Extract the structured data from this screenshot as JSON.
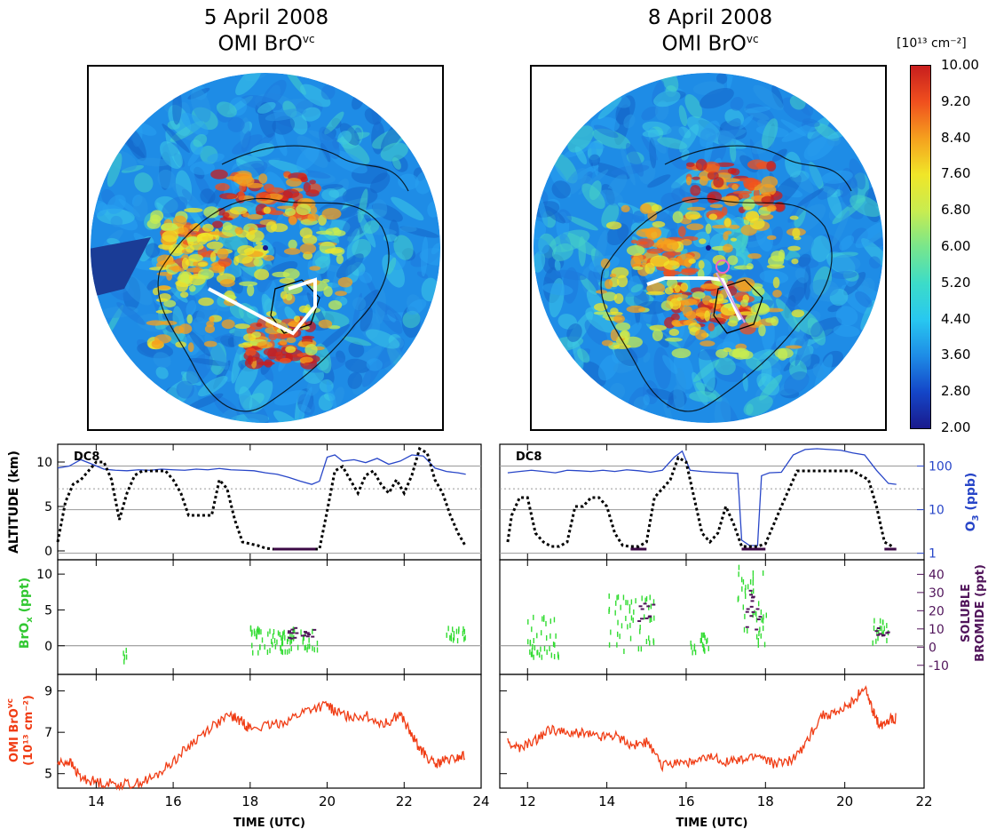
{
  "maps": [
    {
      "date": "5 April 2008",
      "product_main": "OMI BrO",
      "product_sup": "vc"
    },
    {
      "date": "8 April 2008",
      "product_main": "OMI BrO",
      "product_sup": "vc"
    }
  ],
  "colorbar": {
    "unit": "[10¹³ cm⁻²]",
    "ticks": [
      "10.00",
      "9.20",
      "8.40",
      "7.60",
      "6.80",
      "6.00",
      "5.20",
      "4.40",
      "3.60",
      "2.80",
      "2.00"
    ],
    "range": [
      2.0,
      10.0
    ],
    "colors": [
      "#1a1a8c",
      "#1446c8",
      "#1e8ce6",
      "#28c8f0",
      "#3cdcc8",
      "#78e68c",
      "#c8ec50",
      "#f0e628",
      "#f5a01e",
      "#f0501e",
      "#c81e1e"
    ]
  },
  "chart_data": [
    {
      "type": "line",
      "panel": "left-altitude",
      "label": "DC8",
      "ylabel": "ALTITUDE (km)",
      "y2label_main": "O",
      "y2label_sub": "3",
      "y2label_tail": " (ppb)",
      "xlim": [
        13,
        24
      ],
      "ylim": [
        -1,
        12
      ],
      "y2_ticks": [
        "100",
        "10",
        "1"
      ],
      "y_ticks": [
        "10",
        "5",
        "0"
      ],
      "altitude": {
        "x": [
          13.0,
          13.2,
          13.4,
          13.6,
          13.8,
          14.0,
          14.2,
          14.4,
          14.6,
          14.8,
          15.0,
          15.2,
          15.4,
          15.6,
          15.8,
          16.0,
          16.2,
          16.4,
          16.6,
          16.8,
          17.0,
          17.2,
          17.4,
          17.6,
          17.8,
          18.0,
          18.2,
          18.4,
          18.6,
          19.0,
          19.4,
          19.8,
          20.0,
          20.2,
          20.4,
          20.6,
          20.8,
          21.0,
          21.2,
          21.4,
          21.6,
          21.8,
          22.0,
          22.2,
          22.4,
          22.6,
          22.8,
          23.0,
          23.2,
          23.4,
          23.6
        ],
        "y": [
          1.0,
          5.5,
          7.5,
          8.0,
          9.0,
          10.0,
          10.0,
          8.0,
          3.5,
          6.5,
          8.5,
          9.0,
          9.0,
          9.0,
          9.0,
          8.0,
          6.5,
          4.0,
          4.0,
          4.0,
          4.0,
          8.0,
          7.0,
          3.5,
          1.0,
          0.8,
          0.6,
          0.3,
          0.2,
          0.2,
          0.2,
          0.2,
          4.5,
          9.0,
          9.5,
          8.0,
          6.5,
          8.5,
          9.0,
          7.5,
          6.5,
          8.0,
          6.5,
          8.5,
          11.5,
          11.0,
          8.0,
          6.5,
          4.0,
          2.0,
          0.5
        ]
      },
      "o3": {
        "x": [
          13.0,
          13.3,
          13.6,
          13.9,
          14.2,
          14.5,
          14.8,
          15.1,
          15.4,
          15.7,
          16.0,
          16.3,
          16.6,
          16.9,
          17.2,
          17.5,
          17.8,
          18.1,
          18.4,
          18.7,
          19.0,
          19.3,
          19.6,
          19.8,
          20.0,
          20.2,
          20.4,
          20.7,
          21.0,
          21.3,
          21.6,
          21.9,
          22.2,
          22.5,
          22.8,
          23.1,
          23.4,
          23.6
        ],
        "y": [
          90,
          100,
          140,
          110,
          85,
          80,
          78,
          82,
          80,
          85,
          82,
          80,
          85,
          82,
          88,
          82,
          80,
          78,
          70,
          65,
          55,
          45,
          38,
          45,
          160,
          180,
          130,
          140,
          120,
          150,
          110,
          130,
          180,
          170,
          90,
          75,
          70,
          65
        ]
      },
      "sea_level_segments": [
        [
          18.6,
          19.7
        ]
      ]
    },
    {
      "type": "line",
      "panel": "right-altitude",
      "label": "DC8",
      "xlim": [
        11.3,
        22
      ],
      "altitude": {
        "x": [
          11.5,
          11.6,
          11.8,
          12.0,
          12.2,
          12.4,
          12.6,
          12.8,
          13.0,
          13.2,
          13.4,
          13.6,
          13.8,
          14.0,
          14.2,
          14.4,
          14.6,
          14.8,
          15.0,
          15.2,
          15.4,
          15.6,
          15.8,
          16.0,
          16.2,
          16.4,
          16.6,
          16.8,
          17.0,
          17.2,
          17.4,
          17.6,
          17.8,
          18.0,
          18.4,
          18.8,
          19.0,
          19.4,
          19.8,
          20.2,
          20.6,
          20.8,
          21.0,
          21.2
        ],
        "y": [
          1.0,
          4.0,
          6.0,
          6.0,
          2.0,
          1.0,
          0.5,
          0.5,
          1.0,
          5.0,
          5.0,
          6.0,
          6.0,
          5.0,
          2.0,
          0.6,
          0.5,
          0.5,
          1.0,
          6.0,
          7.0,
          8.0,
          10.5,
          10.0,
          6.0,
          2.0,
          1.0,
          2.0,
          5.0,
          3.0,
          0.5,
          0.5,
          0.5,
          0.8,
          5.0,
          9.0,
          9.0,
          9.0,
          9.0,
          9.0,
          8.0,
          5.0,
          1.0,
          0.5
        ]
      },
      "o3": {
        "x": [
          11.5,
          11.8,
          12.1,
          12.4,
          12.7,
          13.0,
          13.3,
          13.6,
          13.9,
          14.2,
          14.5,
          14.8,
          15.1,
          15.4,
          15.7,
          15.9,
          16.1,
          16.4,
          16.7,
          17.0,
          17.3,
          17.4,
          17.6,
          17.8,
          17.9,
          18.1,
          18.4,
          18.7,
          19.0,
          19.3,
          19.6,
          19.9,
          20.2,
          20.5,
          20.8,
          21.1,
          21.3
        ],
        "y": [
          70,
          75,
          80,
          75,
          70,
          80,
          78,
          75,
          80,
          75,
          82,
          78,
          72,
          80,
          160,
          220,
          80,
          75,
          72,
          70,
          68,
          2,
          1.5,
          1.5,
          60,
          70,
          72,
          180,
          240,
          250,
          240,
          230,
          200,
          180,
          80,
          40,
          38
        ]
      },
      "sea_level_segments": [
        [
          14.6,
          15.0
        ],
        [
          17.4,
          18.0
        ],
        [
          21.0,
          21.3
        ]
      ]
    },
    {
      "type": "scatter",
      "panel": "left-brox",
      "ylabel_main": "BrO",
      "ylabel_sub": "x",
      "ylabel_tail": " (ppt)",
      "y_ticks": [
        "10",
        "5",
        "0"
      ],
      "ylim": [
        -4,
        12
      ],
      "clusters": [
        {
          "x0": 14.7,
          "x1": 14.8,
          "ymin": -2.5,
          "ymax": -0.5,
          "n": 5
        },
        {
          "x0": 18.0,
          "x1": 19.8,
          "ymin": -1.0,
          "ymax": 2.5,
          "n": 80
        },
        {
          "x0": 23.1,
          "x1": 23.6,
          "ymin": 0.5,
          "ymax": 2.5,
          "n": 18
        }
      ],
      "bromide": [
        {
          "x0": 19.0,
          "x1": 19.7,
          "ymin": 1.0,
          "ymax": 2.5,
          "n": 18
        }
      ]
    },
    {
      "type": "scatter",
      "panel": "right-brox",
      "y2label_main": "SOLUBLE",
      "y2label_tail": "BROMIDE (ppt)",
      "y2_ticks": [
        "40",
        "30",
        "20",
        "10",
        "0",
        "-10"
      ],
      "y2lim": [
        -15,
        48
      ],
      "clusters": [
        {
          "x0": 12.0,
          "x1": 12.8,
          "ymin": -2.5,
          "ymax": 4.0,
          "n": 40
        },
        {
          "x0": 14.0,
          "x1": 15.2,
          "ymin": -1.0,
          "ymax": 7.0,
          "n": 50
        },
        {
          "x0": 16.1,
          "x1": 16.6,
          "ymin": -1.0,
          "ymax": 1.5,
          "n": 20
        },
        {
          "x0": 17.3,
          "x1": 18.1,
          "ymin": 0.0,
          "ymax": 11.0,
          "n": 40
        },
        {
          "x0": 20.7,
          "x1": 21.1,
          "ymin": 0.0,
          "ymax": 3.5,
          "n": 18
        }
      ],
      "bromide": [
        {
          "x0": 14.8,
          "x1": 15.2,
          "ymin": 3.0,
          "ymax": 6.0,
          "n": 10
        },
        {
          "x0": 17.5,
          "x1": 18.0,
          "ymin": 2.0,
          "ymax": 8.5,
          "n": 15
        },
        {
          "x0": 20.8,
          "x1": 21.1,
          "ymin": 1.0,
          "ymax": 2.5,
          "n": 8
        }
      ]
    },
    {
      "type": "line",
      "panel": "left-omi",
      "ylabel_main": "OMI BrO",
      "ylabel_sup": "vc",
      "ylabel_line2": "(10¹³ cm⁻²)",
      "y_ticks": [
        "9",
        "7",
        "5"
      ],
      "ylim": [
        4.3,
        9.8
      ],
      "xlabel": "TIME (UTC)",
      "x_ticks": [
        "14",
        "16",
        "18",
        "20",
        "22",
        "24"
      ],
      "x": [
        13.0,
        13.3,
        13.6,
        14.0,
        14.5,
        15.0,
        15.5,
        16.0,
        16.5,
        17.0,
        17.5,
        17.8,
        18.0,
        18.5,
        19.0,
        19.5,
        20.0,
        20.2,
        20.5,
        21.0,
        21.5,
        21.9,
        22.2,
        22.5,
        22.8,
        23.0,
        23.3,
        23.6
      ],
      "y": [
        5.5,
        5.6,
        4.8,
        4.6,
        4.5,
        4.5,
        4.8,
        5.6,
        6.5,
        7.3,
        7.8,
        7.5,
        7.2,
        7.3,
        7.6,
        8.1,
        8.3,
        8.0,
        7.8,
        7.8,
        7.4,
        7.9,
        6.8,
        6.0,
        5.4,
        5.6,
        5.7,
        5.9
      ]
    },
    {
      "type": "line",
      "panel": "right-omi",
      "xlabel": "TIME (UTC)",
      "x_ticks": [
        "12",
        "14",
        "16",
        "18",
        "20",
        "22"
      ],
      "x": [
        11.5,
        11.8,
        12.2,
        12.6,
        13.0,
        13.4,
        13.8,
        14.2,
        14.6,
        15.0,
        15.4,
        15.8,
        16.2,
        16.6,
        17.0,
        17.4,
        17.8,
        18.2,
        18.6,
        19.0,
        19.4,
        19.8,
        20.2,
        20.5,
        20.7,
        20.9,
        21.1,
        21.3
      ],
      "y": [
        6.5,
        6.2,
        6.6,
        7.2,
        6.9,
        7.0,
        6.8,
        6.9,
        6.4,
        6.5,
        5.4,
        5.6,
        5.5,
        5.8,
        5.6,
        5.6,
        5.9,
        5.5,
        5.6,
        6.4,
        7.8,
        7.9,
        8.5,
        9.2,
        8.0,
        7.3,
        7.6,
        7.7
      ]
    }
  ]
}
